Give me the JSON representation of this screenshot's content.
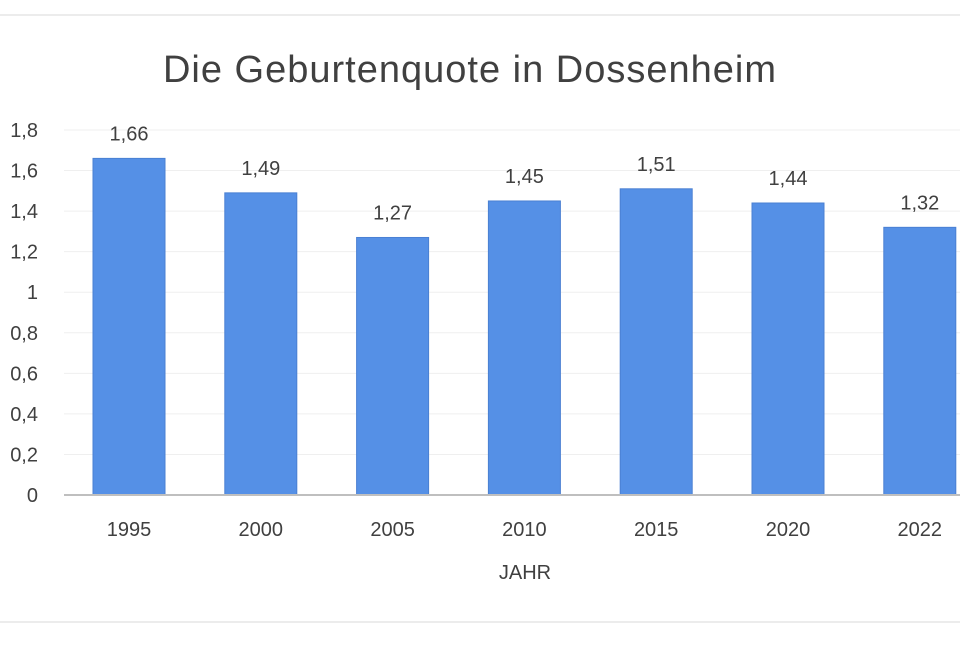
{
  "chart_data": {
    "type": "bar",
    "title": "Die Geburtenquote in Dossenheim",
    "xlabel": "JAHR",
    "ylabel": "",
    "categories": [
      "1995",
      "2000",
      "2005",
      "2010",
      "2015",
      "2020",
      "2022"
    ],
    "values": [
      1.66,
      1.49,
      1.27,
      1.45,
      1.51,
      1.44,
      1.32
    ],
    "value_labels": [
      "1,66",
      "1,49",
      "1,27",
      "1,45",
      "1,51",
      "1,44",
      "1,32"
    ],
    "y_ticks": [
      "0",
      "0,2",
      "0,4",
      "0,6",
      "0,8",
      "1",
      "1,2",
      "1,4",
      "1,6",
      "1,8"
    ],
    "ylim": [
      0,
      1.8
    ],
    "grid": true,
    "legend": "none",
    "colors": {
      "bar": "#5590e6",
      "bar_edge": "#4a80d3",
      "axis": "#bfbfbf",
      "grid": "#efefef",
      "text": "#404040",
      "title": "#404040"
    }
  }
}
